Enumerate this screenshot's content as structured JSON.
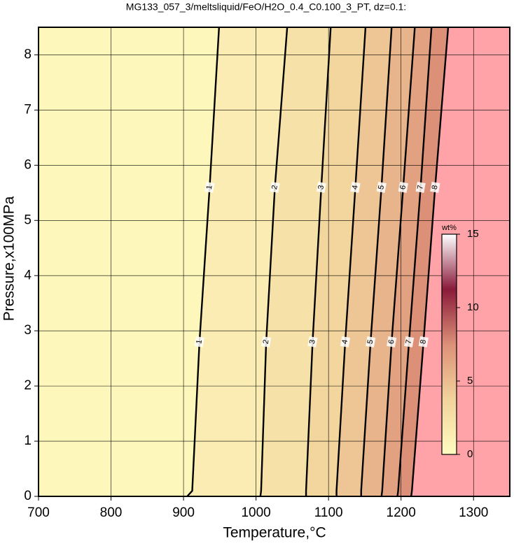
{
  "chart_data": {
    "type": "contour",
    "title": "MG133_057_3/meltsliquid/FeO/H2O_0.4_C0.100_3_PT, dz=0.1:",
    "x_label": "Temperature,°C",
    "y_label": "Pressure,x100MPa",
    "xlim": [
      700,
      1350
    ],
    "xticks": [
      700,
      800,
      900,
      1000,
      1100,
      1200,
      1300
    ],
    "ylim": [
      0,
      8.5
    ],
    "yticks": [
      0,
      1,
      2,
      3,
      4,
      5,
      6,
      7,
      8
    ],
    "grid": true,
    "above_color": "#ffa3a8",
    "contours": [
      {
        "level": 1,
        "pressure": [
          0,
          0.1,
          2.8,
          5.6,
          8.5
        ],
        "temperature": [
          905,
          912,
          922,
          936,
          949
        ]
      },
      {
        "level": 2,
        "pressure": [
          0,
          0.1,
          2.8,
          5.6,
          8.5
        ],
        "temperature": [
          1006,
          1007,
          1014,
          1026,
          1043
        ]
      },
      {
        "level": 3,
        "pressure": [
          0,
          0.1,
          2.8,
          5.6,
          8.5
        ],
        "temperature": [
          1069,
          1069,
          1078,
          1090,
          1103
        ]
      },
      {
        "level": 4,
        "pressure": [
          0,
          0.1,
          2.8,
          5.6,
          8.5
        ],
        "temperature": [
          1111,
          1111,
          1123,
          1137,
          1151
        ]
      },
      {
        "level": 5,
        "pressure": [
          0,
          0.1,
          2.8,
          5.6,
          8.5
        ],
        "temperature": [
          1145,
          1145,
          1158,
          1173,
          1187
        ]
      },
      {
        "level": 6,
        "pressure": [
          0,
          0.1,
          2.8,
          5.6,
          8.5
        ],
        "temperature": [
          1173,
          1174,
          1187,
          1203,
          1219
        ]
      },
      {
        "level": 7,
        "pressure": [
          0,
          0.1,
          2.8,
          5.6,
          8.5
        ],
        "temperature": [
          1195,
          1196,
          1211,
          1227,
          1242
        ]
      },
      {
        "level": 8,
        "pressure": [
          0,
          0.1,
          2.8,
          5.6,
          8.5
        ],
        "temperature": [
          1214,
          1215,
          1231,
          1247,
          1265
        ]
      }
    ],
    "colorbar": {
      "label": "wt%",
      "lim": [
        0,
        15
      ],
      "ticks": [
        0,
        5,
        10,
        15
      ],
      "colors": [
        "#fffcc0",
        "#f2d39c",
        "#dc9078",
        "#8a1a3a",
        "#ffffff"
      ]
    }
  }
}
